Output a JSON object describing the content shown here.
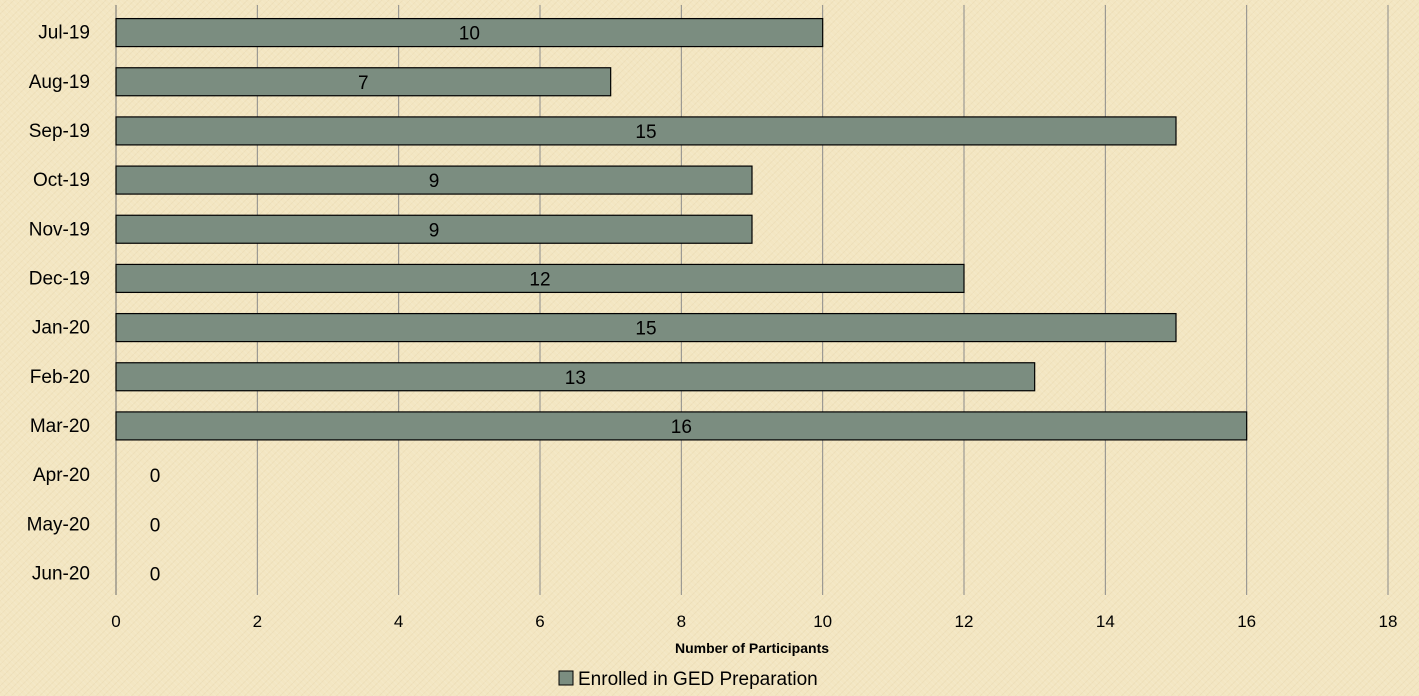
{
  "chart_data": {
    "type": "bar",
    "orientation": "horizontal",
    "categories": [
      "Jul-19",
      "Aug-19",
      "Sep-19",
      "Oct-19",
      "Nov-19",
      "Dec-19",
      "Jan-20",
      "Feb-20",
      "Mar-20",
      "Apr-20",
      "May-20",
      "Jun-20"
    ],
    "series": [
      {
        "name": "Enrolled in GED Preparation",
        "values": [
          10,
          7,
          15,
          9,
          9,
          12,
          15,
          13,
          16,
          0,
          0,
          0
        ]
      }
    ],
    "xlabel": "Number of Participants",
    "ylabel": "",
    "xlim": [
      0,
      18
    ],
    "x_ticks": [
      0,
      2,
      4,
      6,
      8,
      10,
      12,
      14,
      16,
      18
    ],
    "grid": "vertical",
    "legend": "bottom",
    "data_labels": true,
    "colors": {
      "bar": "#7b8d80",
      "bar_border": "#000000",
      "grid": "#8a8a8a",
      "background": "#f3e6c2"
    }
  }
}
